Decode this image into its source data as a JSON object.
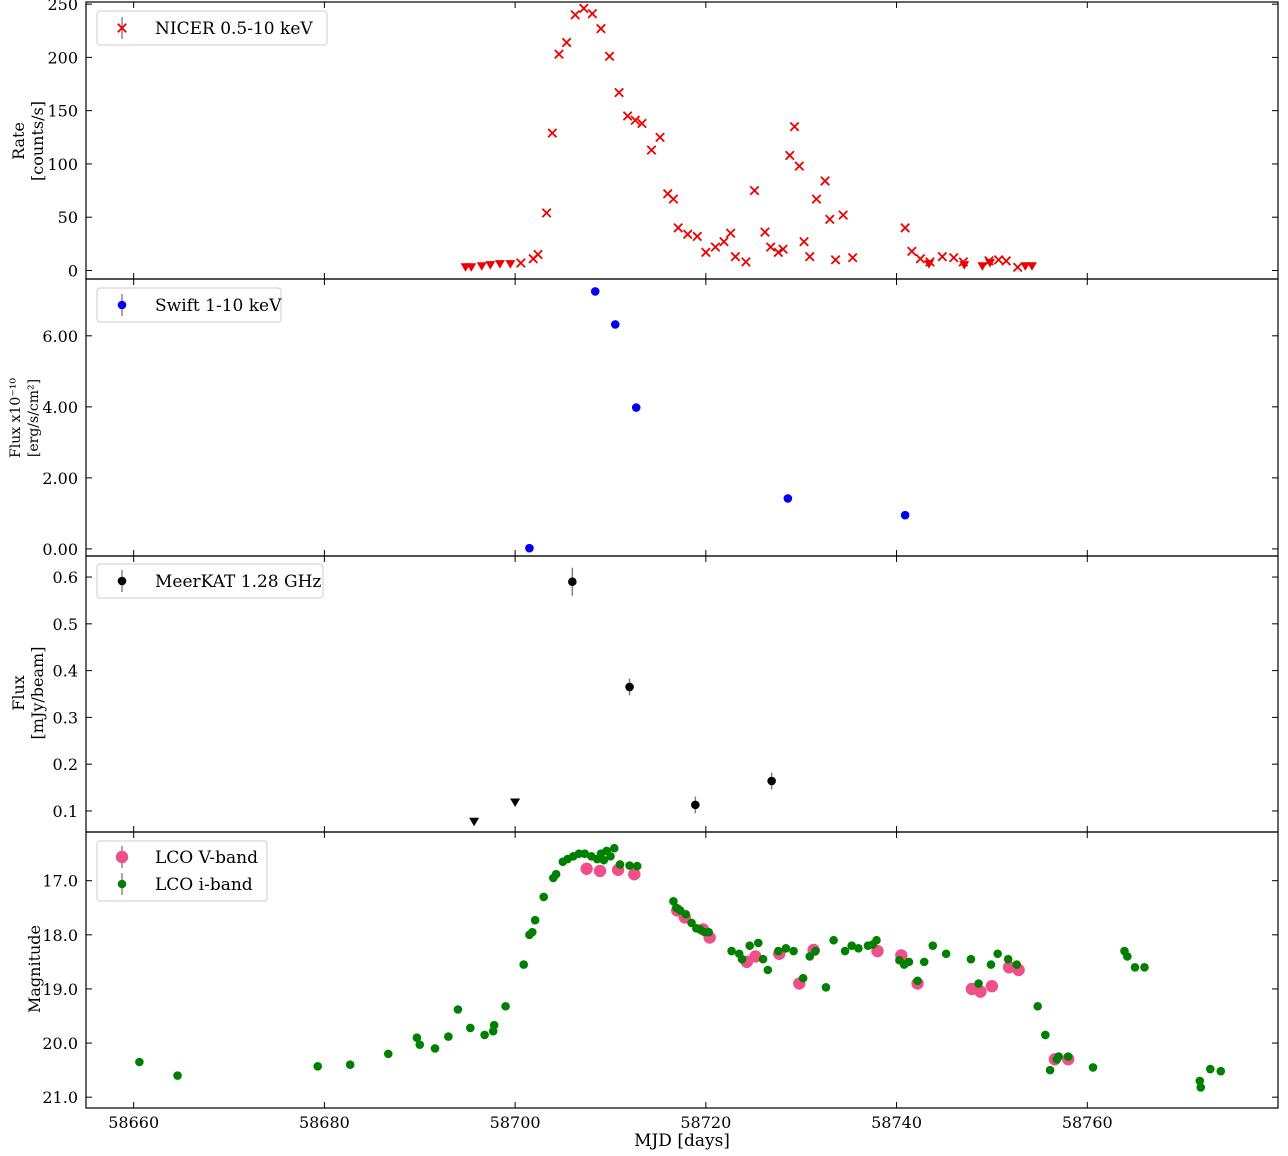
{
  "figure": {
    "xlabel": "MJD [days]",
    "xlim": [
      58655,
      58780
    ],
    "xticks": [
      58660,
      58680,
      58700,
      58720,
      58740,
      58760
    ]
  },
  "chart_data": [
    {
      "type": "scatter",
      "panel": "nicer",
      "ylabel": [
        "Rate",
        "[counts/s]"
      ],
      "ylim": [
        -8,
        252
      ],
      "yticks": [
        0,
        50,
        100,
        150,
        200,
        250
      ],
      "ytick_labels": [
        "0",
        "50",
        "100",
        "150",
        "200",
        "250"
      ],
      "legend": {
        "placement": "top-left",
        "entries": [
          "NICER 0.5-10 keV"
        ]
      },
      "series": [
        {
          "name": "NICER 0.5-10 keV",
          "marker": "x",
          "color": "#ee0000",
          "x": [
            58700.6,
            58701.9,
            58702.4,
            58703.3,
            58703.9,
            58704.6,
            58705.4,
            58706.3,
            58707.2,
            58708.1,
            58709.0,
            58709.9,
            58710.9,
            58711.8,
            58712.6,
            58713.3,
            58714.3,
            58715.2,
            58716.0,
            58716.6,
            58717.1,
            58718.1,
            58719.1,
            58720.0,
            58721.0,
            58721.9,
            58722.6,
            58723.1,
            58724.2,
            58725.1,
            58726.2,
            58726.8,
            58727.6,
            58728.1,
            58728.8,
            58729.3,
            58729.8,
            58730.3,
            58730.9,
            58731.6,
            58732.5,
            58733.0,
            58733.6,
            58734.4,
            58735.4,
            58740.9,
            58741.6,
            58742.5,
            58743.5,
            58744.8,
            58746.0,
            58747.0,
            58749.7,
            58750.7,
            58751.5,
            58752.7
          ],
          "y": [
            7,
            11,
            15,
            54,
            129,
            203,
            214,
            240,
            246,
            241,
            227,
            201,
            167,
            145,
            141,
            138,
            113,
            125,
            72,
            67,
            40,
            34,
            32,
            17,
            22,
            27,
            35,
            13,
            8,
            75,
            36,
            22,
            17,
            20,
            108,
            135,
            98,
            27,
            13,
            67,
            84,
            48,
            10,
            52,
            12,
            40,
            18,
            11,
            8,
            13,
            12,
            8,
            9,
            10,
            9,
            3
          ]
        },
        {
          "name": "NICER upper limits",
          "marker": "triangle-down",
          "color": "#ee0000",
          "x": [
            58694.8,
            58695.4,
            58696.5,
            58697.4,
            58698.4,
            58699.5,
            58743.4,
            58747.1,
            58749.0,
            58749.8,
            58753.5,
            58754.2
          ],
          "y": [
            3,
            3,
            4,
            5,
            6,
            6,
            6,
            5,
            4,
            7,
            4,
            4
          ]
        }
      ]
    },
    {
      "type": "scatter",
      "panel": "swift",
      "ylabel": [
        "Flux x10⁻¹⁰",
        "[erg/s/cm²]"
      ],
      "ylim": [
        -0.2,
        7.6
      ],
      "yticks": [
        0,
        2,
        4,
        6
      ],
      "ytick_labels": [
        "0.00",
        "2.00",
        "4.00",
        "6.00"
      ],
      "legend": {
        "placement": "top-left",
        "entries": [
          "Swift 1-10 keV"
        ]
      },
      "series": [
        {
          "name": "Swift 1-10 keV",
          "marker": "circle",
          "color": "#0000ee",
          "x": [
            58701.5,
            58708.4,
            58710.5,
            58712.7,
            58728.6,
            58740.9
          ],
          "y": [
            0.02,
            7.25,
            6.32,
            3.98,
            1.42,
            0.95
          ]
        }
      ]
    },
    {
      "type": "scatter",
      "panel": "meerkat",
      "ylabel": [
        "Flux",
        "[mJy/beam]"
      ],
      "ylim": [
        0.055,
        0.645
      ],
      "yticks": [
        0.1,
        0.2,
        0.3,
        0.4,
        0.5,
        0.6
      ],
      "ytick_labels": [
        "0.1",
        "0.2",
        "0.3",
        "0.4",
        "0.5",
        "0.6"
      ],
      "legend": {
        "placement": "top-left",
        "entries": [
          "MeerKAT 1.28 GHz"
        ]
      },
      "series": [
        {
          "name": "MeerKAT 1.28 GHz",
          "marker": "circle",
          "color": "#000000",
          "x": [
            58706.0,
            58712.0,
            58718.9,
            58726.9
          ],
          "y": [
            0.59,
            0.365,
            0.113,
            0.164
          ],
          "yerr": [
            0.03,
            0.018,
            0.018,
            0.018
          ]
        },
        {
          "name": "MeerKAT upper limits",
          "marker": "triangle-down",
          "color": "#000000",
          "x": [
            58695.7,
            58700.0
          ],
          "y": [
            0.077,
            0.118
          ]
        }
      ]
    },
    {
      "type": "scatter",
      "panel": "lco",
      "ylabel": [
        "Magnitude"
      ],
      "ylim": [
        21.2,
        16.1
      ],
      "yticks": [
        17,
        18,
        19,
        20,
        21
      ],
      "ytick_labels": [
        "17.0",
        "18.0",
        "19.0",
        "20.0",
        "21.0"
      ],
      "legend": {
        "placement": "top-left",
        "entries": [
          "LCO V-band",
          "LCO i-band"
        ]
      },
      "series": [
        {
          "name": "LCO V-band",
          "marker": "circle-large",
          "color": "#f0508a",
          "x": [
            58707.5,
            58708.9,
            58710.8,
            58712.5,
            58717.0,
            58717.8,
            58719.7,
            58720.4,
            58724.3,
            58725.2,
            58727.7,
            58729.8,
            58731.3,
            58738.0,
            58740.5,
            58742.2,
            58747.9,
            58748.8,
            58750.0,
            58751.8,
            58752.8,
            58756.6,
            58758.0
          ],
          "y": [
            16.78,
            16.82,
            16.8,
            16.88,
            17.55,
            17.68,
            17.9,
            18.05,
            18.5,
            18.4,
            18.35,
            18.9,
            18.28,
            18.3,
            18.38,
            18.9,
            19.0,
            19.05,
            18.95,
            18.6,
            18.65,
            20.3,
            20.3
          ]
        },
        {
          "name": "LCO i-band",
          "marker": "circle",
          "color": "#008000",
          "x": [
            58660.6,
            58664.6,
            58679.3,
            58682.7,
            58686.7,
            58689.7,
            58690.0,
            58691.6,
            58693.0,
            58694.0,
            58695.3,
            58696.8,
            58697.7,
            58697.8,
            58699.0,
            58700.9,
            58701.5,
            58701.8,
            58702.1,
            58703.0,
            58704.0,
            58704.3,
            58705.0,
            58705.5,
            58706.1,
            58706.7,
            58707.3,
            58708.0,
            58708.6,
            58709.0,
            58709.3,
            58709.6,
            58710.0,
            58710.4,
            58711.0,
            58712.0,
            58712.8,
            58716.6,
            58716.9,
            58717.3,
            58717.9,
            58718.5,
            58719.0,
            58719.4,
            58719.9,
            58720.3,
            58722.7,
            58723.5,
            58723.8,
            58724.6,
            58725.5,
            58726.0,
            58726.5,
            58727.6,
            58728.4,
            58729.2,
            58730.2,
            58730.9,
            58731.5,
            58732.6,
            58733.4,
            58734.6,
            58735.3,
            58736.0,
            58737.0,
            58737.5,
            58737.9,
            58740.3,
            58740.8,
            58741.3,
            58742.2,
            58742.9,
            58743.8,
            58745.2,
            58747.8,
            58748.6,
            58749.9,
            58750.6,
            58751.7,
            58752.6,
            58754.8,
            58755.6,
            58756.1,
            58756.8,
            58757.0,
            58758.0,
            58760.6,
            58763.9,
            58764.2,
            58765.0,
            58766.0,
            58771.8,
            58771.9,
            58772.9,
            58774.0
          ],
          "y": [
            20.35,
            20.6,
            20.43,
            20.4,
            20.2,
            19.9,
            20.03,
            20.1,
            19.88,
            19.38,
            19.72,
            19.85,
            19.78,
            19.67,
            19.32,
            18.55,
            18.0,
            17.95,
            17.73,
            17.3,
            16.95,
            16.88,
            16.65,
            16.6,
            16.55,
            16.5,
            16.5,
            16.55,
            16.6,
            16.5,
            16.62,
            16.45,
            16.55,
            16.4,
            16.7,
            16.72,
            16.73,
            17.38,
            17.5,
            17.55,
            17.62,
            17.78,
            17.88,
            17.9,
            17.95,
            17.95,
            18.3,
            18.35,
            18.45,
            18.2,
            18.15,
            18.45,
            18.65,
            18.3,
            18.25,
            18.3,
            18.8,
            18.4,
            18.3,
            18.97,
            18.1,
            18.3,
            18.2,
            18.25,
            18.2,
            18.18,
            18.1,
            18.47,
            18.55,
            18.5,
            18.85,
            18.5,
            18.2,
            18.35,
            18.45,
            18.9,
            18.55,
            18.35,
            18.45,
            18.55,
            19.32,
            19.85,
            20.5,
            20.3,
            20.25,
            20.25,
            20.45,
            18.3,
            18.4,
            18.6,
            18.6,
            20.7,
            20.82,
            20.48,
            20.52
          ]
        }
      ]
    }
  ]
}
